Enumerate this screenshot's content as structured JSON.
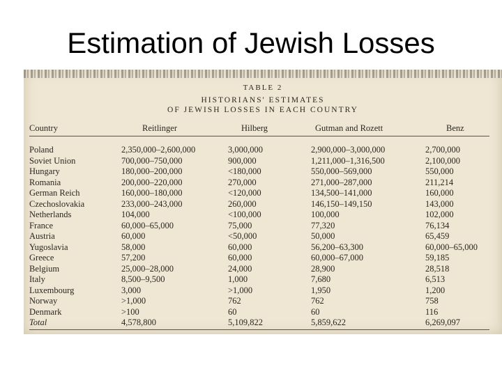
{
  "slide": {
    "title": "Estimation of Jewish Losses"
  },
  "table": {
    "number": "TABLE 2",
    "title_line1": "HISTORIANS' ESTIMATES",
    "title_line2": "OF JEWISH LOSSES IN EACH COUNTRY",
    "headers": [
      "Country",
      "Reitlinger",
      "Hilberg",
      "Gutman and Rozett",
      "Benz"
    ],
    "rows": [
      [
        "Poland",
        "2,350,000–2,600,000",
        "3,000,000",
        "2,900,000–3,000,000",
        "2,700,000"
      ],
      [
        "Soviet Union",
        "700,000–750,000",
        "900,000",
        "1,211,000–1,316,500",
        "2,100,000"
      ],
      [
        "Hungary",
        "180,000–200,000",
        "<180,000",
        "550,000–569,000",
        "550,000"
      ],
      [
        "Romania",
        "200,000–220,000",
        "270,000",
        "271,000–287,000",
        "211,214"
      ],
      [
        "German Reich",
        "160,000–180,000",
        "<120,000",
        "134,500–141,000",
        "160,000"
      ],
      [
        "Czechoslovakia",
        "233,000–243,000",
        "260,000",
        "146,150–149,150",
        "143,000"
      ],
      [
        "Netherlands",
        "104,000",
        "<100,000",
        "100,000",
        "102,000"
      ],
      [
        "France",
        "60,000–65,000",
        "75,000",
        "77,320",
        "76,134"
      ],
      [
        "Austria",
        "60,000",
        "<50,000",
        "50,000",
        "65,459"
      ],
      [
        "Yugoslavia",
        "58,000",
        "60,000",
        "56,200–63,300",
        "60,000–65,000"
      ],
      [
        "Greece",
        "57,200",
        "60,000",
        "60,000–67,000",
        "59,185"
      ],
      [
        "Belgium",
        "25,000–28,000",
        "24,000",
        "28,900",
        "28,518"
      ],
      [
        "Italy",
        "8,500–9,500",
        "1,000",
        "7,680",
        "6,513"
      ],
      [
        "Luxembourg",
        "3,000",
        ">1,000",
        "1,950",
        "1,200"
      ],
      [
        "Norway",
        ">1,000",
        "762",
        "762",
        "758"
      ],
      [
        "Denmark",
        ">100",
        "60",
        "60",
        "116"
      ],
      [
        "Total",
        "4,578,800",
        "5,109,822",
        "5,859,622",
        "6,269,097"
      ]
    ]
  }
}
